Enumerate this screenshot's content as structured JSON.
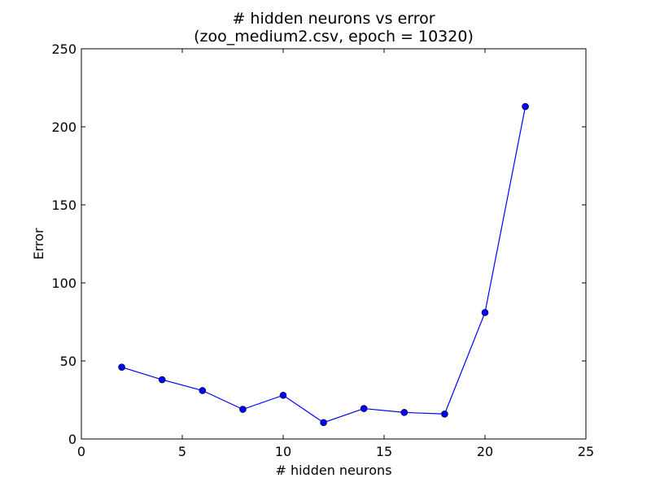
{
  "chart_data": {
    "type": "line",
    "title": "# hidden neurons vs error",
    "subtitle": "(zoo_medium2.csv, epoch = 10320)",
    "xlabel": "# hidden neurons",
    "ylabel": "Error",
    "xlim": [
      0,
      25
    ],
    "ylim": [
      0,
      250
    ],
    "xticks": [
      0,
      5,
      10,
      15,
      20,
      25
    ],
    "yticks": [
      0,
      50,
      100,
      150,
      200,
      250
    ],
    "grid": false,
    "legend": "none",
    "series": [
      {
        "color": "#0000ff",
        "marker": "circle",
        "x": [
          2,
          4,
          6,
          8,
          10,
          12,
          14,
          16,
          18,
          20,
          22
        ],
        "y": [
          46,
          38,
          31,
          19,
          28,
          10.5,
          19.5,
          17,
          16,
          81,
          213
        ]
      }
    ]
  }
}
